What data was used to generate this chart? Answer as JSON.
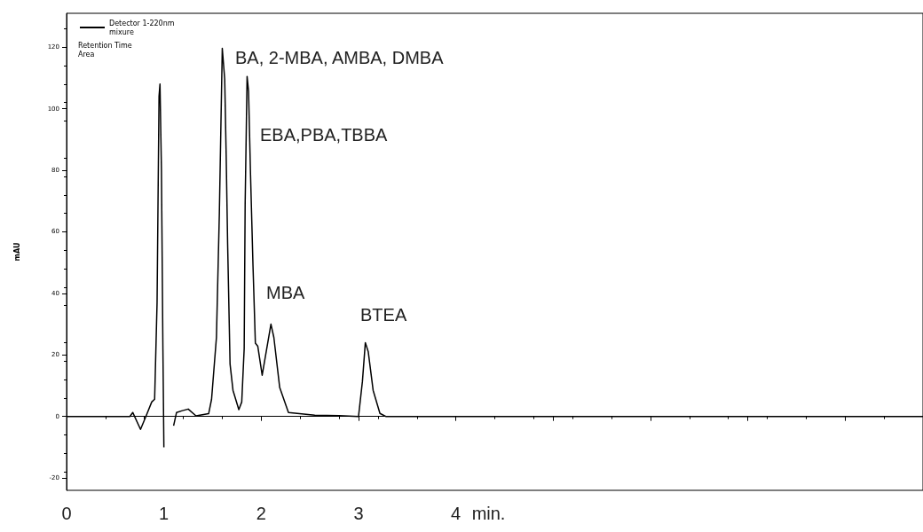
{
  "chart_data": {
    "type": "line",
    "xlabel": "min.",
    "ylabel": "mAU",
    "x": [
      0,
      0.65,
      0.68,
      0.76,
      0.815,
      0.875,
      0.905,
      0.93,
      0.95,
      0.96,
      0.975,
      0.99,
      1.0,
      1.02,
      1.09,
      1.1,
      1.13,
      1.19,
      1.25,
      1.33,
      1.46,
      1.49,
      1.54,
      1.57,
      1.6,
      1.625,
      1.64,
      1.655,
      1.68,
      1.71,
      1.77,
      1.8,
      1.825,
      1.835,
      1.855,
      1.87,
      1.89,
      1.915,
      1.94,
      1.965,
      2.01,
      2.1,
      2.13,
      2.19,
      2.28,
      2.55,
      2.8,
      3.0,
      3.04,
      3.07,
      3.1,
      3.15,
      3.22,
      3.28,
      8.8
    ],
    "series": [
      {
        "name": "Detector 1-220nm\nmixure",
        "color": "#000000",
        "values": [
          0,
          0,
          1.3,
          -4.2,
          0,
          4.7,
          5.6,
          37,
          104,
          108,
          80,
          22,
          -10,
          null,
          null,
          -3,
          1.3,
          1.9,
          2.4,
          0.2,
          0.9,
          5.6,
          25.7,
          66,
          119.6,
          109.6,
          85,
          56,
          17,
          8.5,
          2.2,
          4.7,
          22,
          69,
          110.5,
          105.7,
          79,
          49.6,
          23.8,
          22.8,
          13.4,
          30,
          25.7,
          9.4,
          1.3,
          0.4,
          0.3,
          0,
          11.4,
          24,
          21,
          8.5,
          1,
          0,
          0
        ]
      }
    ],
    "xlim": [
      0,
      8.8
    ],
    "xticks": [
      0,
      1,
      2,
      3,
      4,
      {
        "value": 5,
        "label": null
      },
      {
        "value": 6,
        "label": null
      },
      {
        "value": 7,
        "label": null
      },
      {
        "value": 8,
        "label": null
      }
    ],
    "ylim": [
      -24,
      131
    ],
    "yticks": [
      -20,
      0,
      20,
      40,
      60,
      80,
      100,
      120
    ],
    "legend": "top left",
    "marker": "none",
    "line_style": "solid",
    "annotations": [
      "Retention Time\nArea",
      "BA, 2-MBA, AMBA, DMBA",
      "EBA,PBA,TBBA",
      "MBA",
      "BTEA"
    ]
  }
}
